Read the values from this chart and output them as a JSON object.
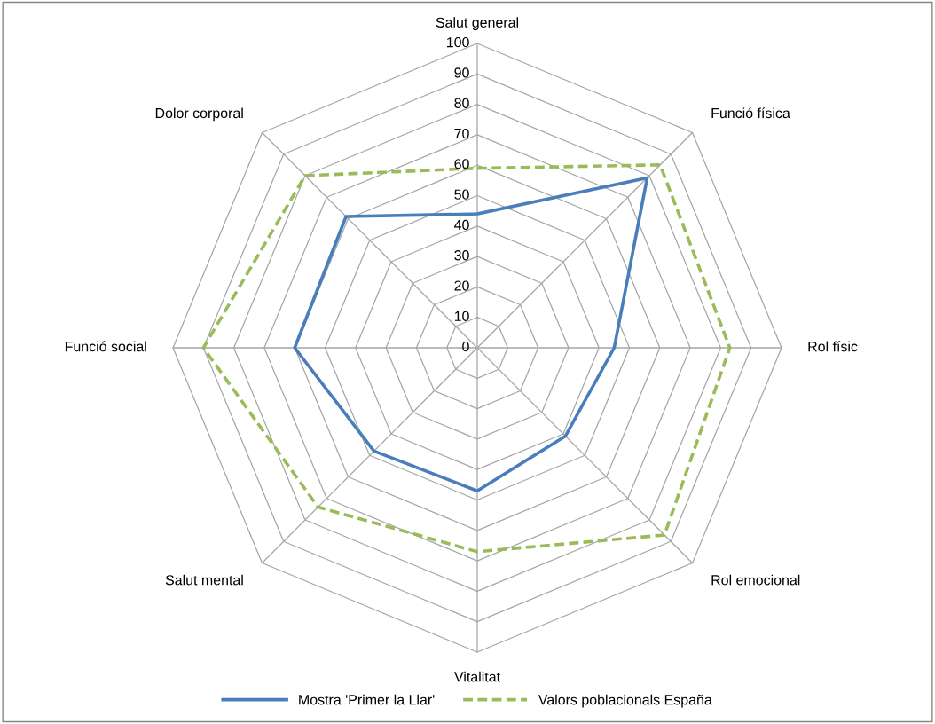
{
  "chart_data": {
    "type": "radar",
    "categories": [
      "Salut general",
      "Funció física",
      "Rol físic",
      "Rol emocional",
      "Vitalitat",
      "Salut mental",
      "Funció social",
      "Dolor corporal"
    ],
    "series": [
      {
        "name": "Mostra 'Primer la Llar'",
        "color": "#4a7ebb",
        "line_style": "solid",
        "values": [
          44,
          79,
          45,
          41,
          47,
          48,
          60,
          61
        ]
      },
      {
        "name": "Valors poblacionals España",
        "color": "#9bbb59",
        "line_style": "dashed",
        "values": [
          59,
          85,
          83,
          87,
          67,
          74,
          90,
          80
        ]
      }
    ],
    "ylim": [
      0,
      100
    ],
    "yticks": [
      0,
      10,
      20,
      30,
      40,
      50,
      60,
      70,
      80,
      90,
      100
    ],
    "grid": true,
    "legend": "bottom",
    "marker": "none"
  }
}
